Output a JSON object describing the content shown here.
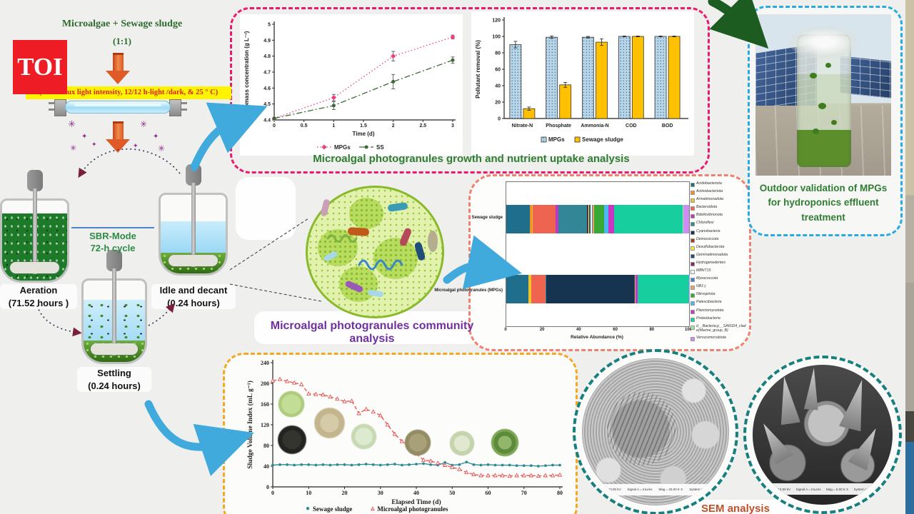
{
  "logo": {
    "text": "TOI"
  },
  "header": {
    "title": "Microalgae + Sewage sludge",
    "ratio": "(1:1)",
    "conditions": "(45300 Lux light intensity, 12/12 h-light /dark, & 25 ° C)"
  },
  "sbr": {
    "mode_line1": "SBR-Mode",
    "mode_line2": "72-h cycle",
    "aeration_label": "Aeration",
    "aeration_time": "(71.52 hours )",
    "settling_label": "Settling",
    "settling_time": "(0.24 hours)",
    "idle_label": "Idle and decant",
    "idle_time": "(0.24 hours)"
  },
  "captions": {
    "growth": "Microalgal photogranules growth and nutrient uptake analysis",
    "community": "Microalgal photogranules community analysis",
    "outdoor": "Outdoor validation of MPGs for hydroponics effluent treatment",
    "sem": "SEM analysis"
  },
  "sem": {
    "left_meta": [
      "= 10.00 kV",
      "Signal A = InLens",
      "Mag = 20.00 K X",
      "System Va-"
    ],
    "right_meta": [
      "= 10.00 kV",
      "Signal A = InLens",
      "Mag = 5.00 K X",
      "System Va-"
    ]
  },
  "chart_data": [
    {
      "id": "biomass-growth",
      "type": "line",
      "xlabel": "Time (d)",
      "ylabel": "Biomass concentration (g L⁻¹)",
      "xlim": [
        0,
        3
      ],
      "ylim": [
        4.4,
        5.0
      ],
      "xticks": [
        0,
        0.5,
        1,
        1.5,
        2,
        2.5,
        3
      ],
      "yticks": [
        4.4,
        4.5,
        4.6,
        4.7,
        4.8,
        4.9,
        5
      ],
      "x": [
        0,
        1,
        2,
        3
      ],
      "legend_position": "bottom",
      "series": [
        {
          "name": "MPGs",
          "color": "#ed3f7e",
          "style": "dotted",
          "marker": "diamond",
          "values": [
            4.41,
            4.54,
            4.8,
            4.92
          ],
          "errors": [
            0.005,
            0.02,
            0.03,
            0.012
          ]
        },
        {
          "name": "SS",
          "color": "#3a6b35",
          "style": "dashdot",
          "marker": "circle",
          "values": [
            4.41,
            4.49,
            4.64,
            4.775
          ],
          "errors": [
            0.005,
            0.025,
            0.045,
            0.02
          ]
        }
      ]
    },
    {
      "id": "pollutant-removal",
      "type": "bar",
      "ylabel": "Pollutant removal (%)",
      "ylim": [
        0,
        120
      ],
      "yticks": [
        0,
        20,
        40,
        60,
        80,
        100,
        120
      ],
      "categories": [
        "Nitrate-N",
        "Phosphate",
        "Ammonia-N",
        "COD",
        "BOD"
      ],
      "legend_position": "bottom",
      "series": [
        {
          "name": "MPGs",
          "color": "#b8d6e8",
          "pattern": "dots",
          "values": [
            90,
            99,
            99,
            100,
            100
          ],
          "errors": [
            4,
            1.5,
            1,
            0.5,
            0.5
          ]
        },
        {
          "name": "Sewage sludge",
          "color": "#ffc000",
          "values": [
            12,
            41,
            93,
            100,
            100
          ],
          "errors": [
            2,
            3,
            4,
            0.5,
            0.5
          ]
        }
      ]
    },
    {
      "id": "community-composition",
      "type": "stacked-bar-horizontal",
      "xlabel": "Relative Abundance (%)",
      "xlim": [
        0,
        100
      ],
      "xticks": [
        0,
        20,
        40,
        60,
        80,
        100
      ],
      "categories": [
        "Sewage sludge",
        "Microalgal photogranules (MPGs)"
      ],
      "legend_position": "right",
      "taxa": [
        {
          "name": "Acidobacteriota",
          "color": "#1f6e8c",
          "values": [
            13,
            12
          ]
        },
        {
          "name": "Actinobacteriota",
          "color": "#f28e2b",
          "values": [
            1,
            0.3
          ]
        },
        {
          "name": "Armatimonadota",
          "color": "#f2c029",
          "values": [
            0.5,
            1.2
          ]
        },
        {
          "name": "Bacteroidota",
          "color": "#ef6351",
          "values": [
            12.5,
            8
          ]
        },
        {
          "name": "Bdellovibrionota",
          "color": "#b53dbf",
          "values": [
            1.5,
            0.2
          ]
        },
        {
          "name": "Chloroflexi",
          "color": "#338696",
          "values": [
            15.5,
            0.3
          ]
        },
        {
          "name": "Cyanobacteria",
          "color": "#16344f",
          "values": [
            0.5,
            48
          ]
        },
        {
          "name": "Deinococcota",
          "color": "#a63a1e",
          "values": [
            0.3,
            0.1
          ]
        },
        {
          "name": "Desulfobacterota",
          "color": "#f5e642",
          "values": [
            0.7,
            0.1
          ]
        },
        {
          "name": "Gemmatimonadota",
          "color": "#1f4e79",
          "values": [
            0.5,
            0.1
          ]
        },
        {
          "name": "Hydrogenedentes",
          "color": "#7b2d5e",
          "values": [
            0.3,
            0.1
          ]
        },
        {
          "name": "MBNT15",
          "color": "#f7f7f7",
          "values": [
            0.5,
            0.1
          ]
        },
        {
          "name": "Myxococcota",
          "color": "#3d85c8",
          "values": [
            0.7,
            0.1
          ]
        },
        {
          "name": "NB1-j",
          "color": "#f2a05d",
          "values": [
            0.5,
            0.1
          ]
        },
        {
          "name": "Nitrospirota",
          "color": "#39a935",
          "values": [
            5.5,
            0.1
          ]
        },
        {
          "name": "Patescibacteria",
          "color": "#4db8f0",
          "values": [
            2.5,
            0.1
          ]
        },
        {
          "name": "Planctomycetota",
          "color": "#cc35c2",
          "values": [
            3,
            1.1
          ]
        },
        {
          "name": "Proteobacteria",
          "color": "#17cf9e",
          "values": [
            37.5,
            28
          ]
        },
        {
          "name": "d__Bacteria;p__SAR324_clade(Marine_group_B)",
          "color": "#a8e6a0",
          "values": [
            0.5,
            0.1
          ]
        },
        {
          "name": "Verrucomicrobiota",
          "color": "#ce8df5",
          "values": [
            3,
            0.1
          ]
        }
      ]
    },
    {
      "id": "sludge-volume-index",
      "type": "line",
      "xlabel": "Elapsed Time (d)",
      "ylabel": "Sludge Volume Index  (mL g⁻¹)",
      "xlim": [
        0,
        80
      ],
      "ylim": [
        0,
        240
      ],
      "xticks": [
        0,
        10,
        20,
        30,
        40,
        50,
        60,
        70,
        80
      ],
      "yticks": [
        0,
        40,
        80,
        120,
        160,
        200,
        240
      ],
      "x": [
        0,
        2,
        4,
        6,
        8,
        10,
        12,
        14,
        16,
        18,
        20,
        22,
        24,
        26,
        28,
        30,
        32,
        34,
        36,
        38,
        40,
        42,
        44,
        46,
        48,
        50,
        52,
        54,
        56,
        58,
        60,
        62,
        64,
        66,
        68,
        70,
        72,
        74,
        76,
        78,
        80
      ],
      "legend_position": "bottom",
      "series": [
        {
          "name": "Sewage sludge",
          "color": "#2a8a96",
          "style": "solid",
          "marker": "circle",
          "values": [
            42,
            43,
            43,
            42,
            43,
            43,
            42,
            43,
            42,
            43,
            43,
            42,
            43,
            44,
            43,
            42,
            43,
            44,
            42,
            43,
            44,
            45,
            43,
            42,
            47,
            42,
            43,
            48,
            43,
            42,
            43,
            42,
            42,
            42,
            41,
            41,
            41,
            40,
            41,
            42,
            42
          ]
        },
        {
          "name": "Microalgal photogranules",
          "color": "#e8504f",
          "style": "dashed",
          "marker": "triangle-open",
          "values": [
            205,
            208,
            204,
            201,
            198,
            180,
            179,
            178,
            174,
            170,
            165,
            166,
            142,
            150,
            145,
            138,
            120,
            102,
            88,
            80,
            64,
            52,
            50,
            46,
            42,
            38,
            34,
            28,
            24,
            22,
            22,
            22,
            22,
            21,
            22,
            22,
            22,
            21,
            22,
            22,
            23
          ]
        }
      ]
    }
  ]
}
